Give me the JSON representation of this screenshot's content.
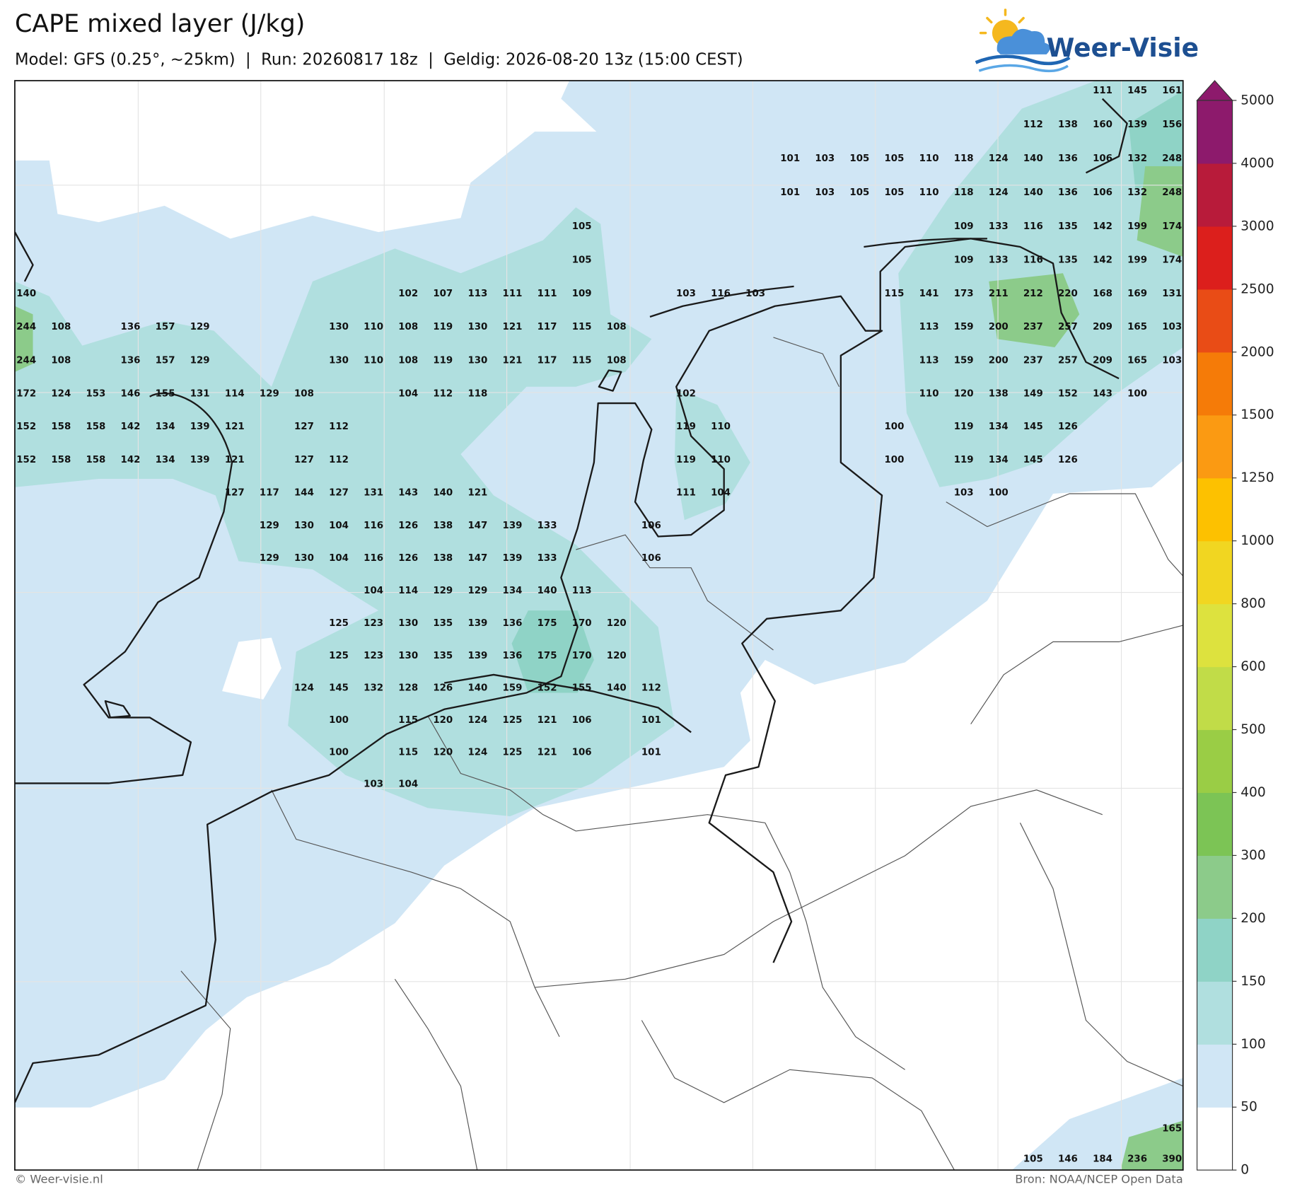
{
  "header": {
    "title": "CAPE mixed layer (J/kg)",
    "subtitle": "Model: GFS (0.25°, ~25km)  |  Run: 20260817 18z  |  Geldig: 2026-08-20 13z (15:00 CEST)"
  },
  "logo": {
    "text": "Weer-Visie"
  },
  "footer": {
    "credit": "© Weer-visie.nl",
    "source": "Bron: NOAA/NCEP Open Data"
  },
  "colorbar": {
    "levels": [
      0,
      50,
      100,
      150,
      200,
      300,
      400,
      500,
      600,
      800,
      1000,
      1250,
      1500,
      2000,
      2500,
      3000,
      4000,
      5000
    ],
    "colors": [
      "#ffffff",
      "#d0e6f5",
      "#b0dfdf",
      "#8fd3c6",
      "#8ccb8a",
      "#7cc455",
      "#9acd45",
      "#c1dc48",
      "#dde23e",
      "#f1d621",
      "#fdc100",
      "#fb9a12",
      "#f57b08",
      "#e94c16",
      "#dc1f1c",
      "#b81b3a",
      "#8d1a6c"
    ],
    "extend_color": "#8d1a6c"
  },
  "map": {
    "values": [
      [
        null,
        null,
        null,
        null,
        null,
        null,
        null,
        null,
        null,
        null,
        null,
        null,
        null,
        null,
        null,
        null,
        null,
        null,
        null,
        null,
        null,
        null,
        null,
        null,
        null,
        null,
        null,
        null,
        null,
        null,
        null,
        111,
        145,
        161
      ],
      [
        null,
        null,
        null,
        null,
        null,
        null,
        null,
        null,
        null,
        null,
        null,
        null,
        null,
        null,
        null,
        null,
        null,
        null,
        null,
        null,
        null,
        null,
        null,
        null,
        null,
        null,
        null,
        null,
        null,
        112,
        138,
        160,
        139,
        156
      ],
      [
        null,
        null,
        null,
        null,
        null,
        null,
        null,
        null,
        null,
        null,
        null,
        null,
        null,
        null,
        null,
        null,
        null,
        null,
        null,
        null,
        null,
        null,
        101,
        103,
        105,
        105,
        110,
        118,
        124,
        140,
        136,
        106,
        132,
        248
      ],
      [
        null,
        null,
        null,
        null,
        null,
        null,
        null,
        null,
        null,
        null,
        null,
        null,
        null,
        null,
        null,
        null,
        null,
        null,
        null,
        null,
        null,
        null,
        101,
        103,
        105,
        105,
        110,
        118,
        124,
        140,
        136,
        106,
        132,
        248
      ],
      [
        null,
        null,
        null,
        null,
        null,
        null,
        null,
        null,
        null,
        null,
        null,
        null,
        null,
        null,
        null,
        null,
        105,
        null,
        null,
        null,
        null,
        null,
        null,
        null,
        null,
        null,
        null,
        109,
        133,
        116,
        135,
        142,
        199,
        174
      ],
      [
        null,
        null,
        null,
        null,
        null,
        null,
        null,
        null,
        null,
        null,
        null,
        null,
        null,
        null,
        null,
        null,
        105,
        null,
        null,
        null,
        null,
        null,
        null,
        null,
        null,
        null,
        null,
        109,
        133,
        116,
        135,
        142,
        199,
        174
      ],
      [
        140,
        null,
        null,
        null,
        null,
        null,
        null,
        null,
        null,
        null,
        null,
        102,
        107,
        113,
        111,
        111,
        109,
        null,
        null,
        103,
        116,
        103,
        null,
        null,
        null,
        115,
        141,
        173,
        211,
        212,
        220,
        168,
        169,
        131
      ],
      [
        244,
        108,
        null,
        136,
        157,
        129,
        null,
        null,
        null,
        130,
        110,
        108,
        119,
        130,
        121,
        117,
        115,
        108,
        null,
        null,
        null,
        null,
        null,
        null,
        null,
        null,
        113,
        159,
        200,
        237,
        257,
        209,
        165,
        103
      ],
      [
        244,
        108,
        null,
        136,
        157,
        129,
        null,
        null,
        null,
        130,
        110,
        108,
        119,
        130,
        121,
        117,
        115,
        108,
        null,
        null,
        null,
        null,
        null,
        null,
        null,
        null,
        113,
        159,
        200,
        237,
        257,
        209,
        165,
        103
      ],
      [
        172,
        124,
        153,
        146,
        155,
        131,
        114,
        129,
        108,
        null,
        null,
        104,
        112,
        118,
        null,
        null,
        null,
        null,
        null,
        102,
        null,
        null,
        null,
        null,
        null,
        null,
        110,
        120,
        138,
        149,
        152,
        143,
        100,
        null
      ],
      [
        152,
        158,
        158,
        142,
        134,
        139,
        121,
        null,
        127,
        112,
        null,
        null,
        null,
        null,
        null,
        null,
        null,
        null,
        null,
        119,
        110,
        null,
        null,
        null,
        null,
        100,
        null,
        119,
        134,
        145,
        126,
        null,
        null,
        null
      ],
      [
        152,
        158,
        158,
        142,
        134,
        139,
        121,
        null,
        127,
        112,
        null,
        null,
        null,
        null,
        null,
        null,
        null,
        null,
        null,
        119,
        110,
        null,
        null,
        null,
        null,
        100,
        null,
        119,
        134,
        145,
        126,
        null,
        null,
        null
      ],
      [
        null,
        null,
        null,
        null,
        null,
        null,
        127,
        117,
        144,
        127,
        131,
        143,
        140,
        121,
        null,
        null,
        null,
        null,
        null,
        111,
        104,
        null,
        null,
        null,
        null,
        null,
        null,
        103,
        100,
        null,
        null,
        null,
        null,
        null
      ],
      [
        null,
        null,
        null,
        null,
        null,
        null,
        null,
        129,
        130,
        104,
        116,
        126,
        138,
        147,
        139,
        133,
        null,
        null,
        106,
        null,
        null,
        null,
        null,
        null,
        null,
        null,
        null,
        null,
        null,
        null,
        null,
        null,
        null,
        null
      ],
      [
        null,
        null,
        null,
        null,
        null,
        null,
        null,
        129,
        130,
        104,
        116,
        126,
        138,
        147,
        139,
        133,
        null,
        null,
        106,
        null,
        null,
        null,
        null,
        null,
        null,
        null,
        null,
        null,
        null,
        null,
        null,
        null,
        null,
        null
      ],
      [
        null,
        null,
        null,
        null,
        null,
        null,
        null,
        null,
        null,
        null,
        104,
        114,
        129,
        129,
        134,
        140,
        113,
        null,
        null,
        null,
        null,
        null,
        null,
        null,
        null,
        null,
        null,
        null,
        null,
        null,
        null,
        null,
        null,
        null
      ],
      [
        null,
        null,
        null,
        null,
        null,
        null,
        null,
        null,
        null,
        125,
        123,
        130,
        135,
        139,
        136,
        175,
        170,
        120,
        null,
        null,
        null,
        null,
        null,
        null,
        null,
        null,
        null,
        null,
        null,
        null,
        null,
        null,
        null,
        null
      ],
      [
        null,
        null,
        null,
        null,
        null,
        null,
        null,
        null,
        null,
        125,
        123,
        130,
        135,
        139,
        136,
        175,
        170,
        120,
        null,
        null,
        null,
        null,
        null,
        null,
        null,
        null,
        null,
        null,
        null,
        null,
        null,
        null,
        null,
        null
      ],
      [
        null,
        null,
        null,
        null,
        null,
        null,
        null,
        null,
        124,
        145,
        132,
        128,
        126,
        140,
        159,
        152,
        155,
        140,
        112,
        null,
        null,
        null,
        null,
        null,
        null,
        null,
        null,
        null,
        null,
        null,
        null,
        null,
        null,
        null
      ],
      [
        null,
        null,
        null,
        null,
        null,
        null,
        null,
        null,
        null,
        100,
        null,
        115,
        120,
        124,
        125,
        121,
        106,
        null,
        101,
        null,
        null,
        null,
        null,
        null,
        null,
        null,
        null,
        null,
        null,
        null,
        null,
        null,
        null,
        null
      ],
      [
        null,
        null,
        null,
        null,
        null,
        null,
        null,
        null,
        null,
        100,
        null,
        115,
        120,
        124,
        125,
        121,
        106,
        null,
        101,
        null,
        null,
        null,
        null,
        null,
        null,
        null,
        null,
        null,
        null,
        null,
        null,
        null,
        null,
        null
      ],
      [
        null,
        null,
        null,
        null,
        null,
        null,
        null,
        null,
        null,
        null,
        103,
        104,
        null,
        null,
        null,
        null,
        null,
        null,
        null,
        null,
        null,
        null,
        null,
        null,
        null,
        null,
        null,
        null,
        null,
        null,
        null,
        null,
        null,
        null
      ],
      null,
      null,
      null,
      null,
      null,
      null,
      null,
      null,
      null,
      null,
      [
        null,
        null,
        null,
        null,
        null,
        null,
        null,
        null,
        null,
        null,
        null,
        null,
        null,
        null,
        null,
        null,
        null,
        null,
        null,
        null,
        null,
        null,
        null,
        null,
        null,
        null,
        null,
        null,
        null,
        null,
        null,
        null,
        null,
        165
      ],
      [
        null,
        null,
        null,
        null,
        null,
        null,
        null,
        null,
        null,
        null,
        null,
        null,
        null,
        null,
        null,
        null,
        null,
        null,
        null,
        null,
        null,
        null,
        null,
        null,
        null,
        null,
        null,
        null,
        null,
        105,
        146,
        184,
        236,
        390
      ]
    ]
  }
}
